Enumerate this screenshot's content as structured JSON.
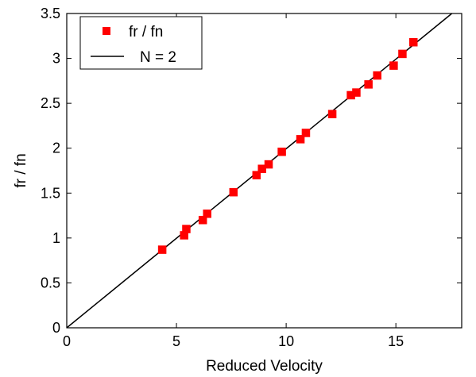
{
  "chart_data": {
    "type": "scatter",
    "title": "",
    "xlabel": "Reduced Velocity",
    "ylabel": "fr / fn",
    "xlim": [
      0,
      18
    ],
    "ylim": [
      0,
      3.5
    ],
    "xticks": [
      0,
      5,
      10,
      15
    ],
    "xtick_labels": [
      "0",
      "5",
      "10",
      "15"
    ],
    "yticks": [
      0,
      0.5,
      1,
      1.5,
      2,
      2.5,
      3,
      3.5
    ],
    "ytick_labels": [
      "0",
      "0.5",
      "1",
      "1.5",
      "2",
      "2.5",
      "3",
      "3.5"
    ],
    "grid": false,
    "legend_position": "top-left",
    "series": [
      {
        "name": "fr / fn",
        "type": "scatter",
        "marker": "square",
        "color": "#ff0000",
        "x": [
          4.35,
          5.35,
          5.45,
          6.2,
          6.4,
          7.6,
          8.65,
          8.9,
          9.2,
          9.8,
          10.65,
          10.9,
          12.1,
          12.95,
          13.2,
          13.75,
          14.15,
          14.9,
          15.3,
          15.8
        ],
        "y": [
          0.87,
          1.03,
          1.1,
          1.2,
          1.27,
          1.51,
          1.7,
          1.77,
          1.82,
          1.96,
          2.1,
          2.17,
          2.38,
          2.59,
          2.62,
          2.71,
          2.81,
          2.92,
          3.05,
          3.18
        ]
      },
      {
        "name": "N = 2",
        "type": "line",
        "color": "#000000",
        "x": [
          0,
          17.55
        ],
        "y": [
          0,
          3.5
        ]
      }
    ]
  }
}
